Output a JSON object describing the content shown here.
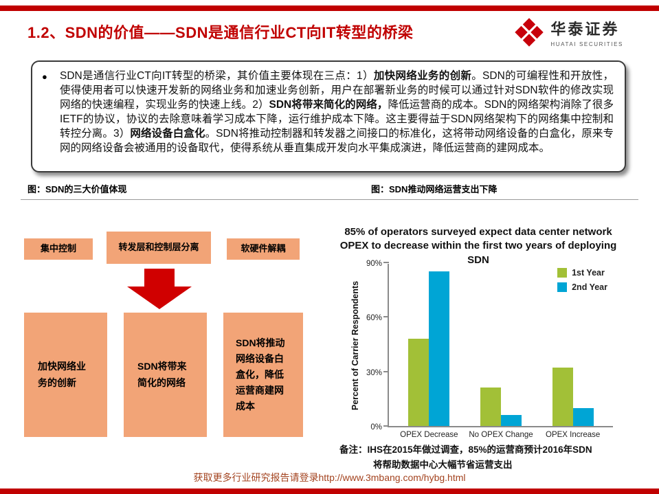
{
  "colors": {
    "accent_red": "#C00000",
    "logo_red": "#C7000B",
    "diagram_box_fill": "#F2A477",
    "arrow_red": "#D00000",
    "bar_first_year": "#A2C037",
    "bar_second_year": "#00A5D5",
    "footer_link": "#A3431F"
  },
  "header": {
    "title": "1.2、SDN的价值——SDN是通信行业CT向IT转型的桥梁",
    "logo": {
      "name": "华泰证券",
      "subtitle": "HUATAI SECURITIES"
    }
  },
  "summary": {
    "bullet": "●",
    "segments": [
      {
        "text": "SDN是通信行业CT向IT转型的桥梁，其价值主要体现在三点：1）",
        "bold": false
      },
      {
        "text": "加快网络业务的创新",
        "bold": true
      },
      {
        "text": "。SDN的可编程性和开放性，使得使用者可以快速开发新的网络业务和加速业务创新，用户在部署新业务的时候可以通过针对SDN软件的修改实现网络的快速编程，实现业务的快速上线。2）",
        "bold": false
      },
      {
        "text": "SDN将带来简化的网络，",
        "bold": true
      },
      {
        "text": "降低运营商的成本。SDN的网络架构消除了很多IETF的协议，协议的去除意味着学习成本下降，运行维护成本下降。这主要得益于SDN网络架构下的网络集中控制和转控分离。3）",
        "bold": false
      },
      {
        "text": "网络设备白盒化",
        "bold": true
      },
      {
        "text": "。SDN将推动控制器和转发器之间接口的标准化，这将带动网络设备的白盒化，原来专网的网络设备会被通用的设备取代，使得系统从垂直集成开发向水平集成演进，降低运营商的建网成本。",
        "bold": false
      }
    ]
  },
  "captions": {
    "left": "图：SDN的三大价值体现",
    "right": "图：SDN推动网络运营支出下降"
  },
  "diagram": {
    "top_boxes": [
      "集中控制",
      "转发层和控制层分离",
      "软硬件解耦"
    ],
    "bottom_boxes": [
      "加快网络业务的创新",
      "SDN将带来简化的网络",
      "SDN将推动网络设备白盒化，降低运营商建网成本"
    ]
  },
  "chart_data": {
    "type": "bar",
    "title": "85% of operators surveyed expect data center network OPEX to decrease within the first two years of deploying SDN",
    "ylabel": "Percent of Carrier Respondents",
    "xlabel": "",
    "categories": [
      "OPEX Decrease",
      "No OPEX Change",
      "OPEX Increase"
    ],
    "series": [
      {
        "name": "1st Year",
        "color": "#A2C037",
        "values": [
          48,
          21,
          32
        ]
      },
      {
        "name": "2nd Year",
        "color": "#00A5D5",
        "values": [
          85,
          6,
          10
        ]
      }
    ],
    "ylim": [
      0,
      90
    ],
    "yticks": [
      0,
      30,
      60,
      90
    ],
    "ytick_suffix": "%",
    "grid": false,
    "legend_position": "upper right",
    "note": "备注：IHS在2015年做过调查，85%的运营商预计2016年SDN将帮助数据中心大幅节省运营支出"
  },
  "footer": {
    "text": "获取更多行业研究报告请登录http://www.3mbang.com/hybg.html"
  }
}
